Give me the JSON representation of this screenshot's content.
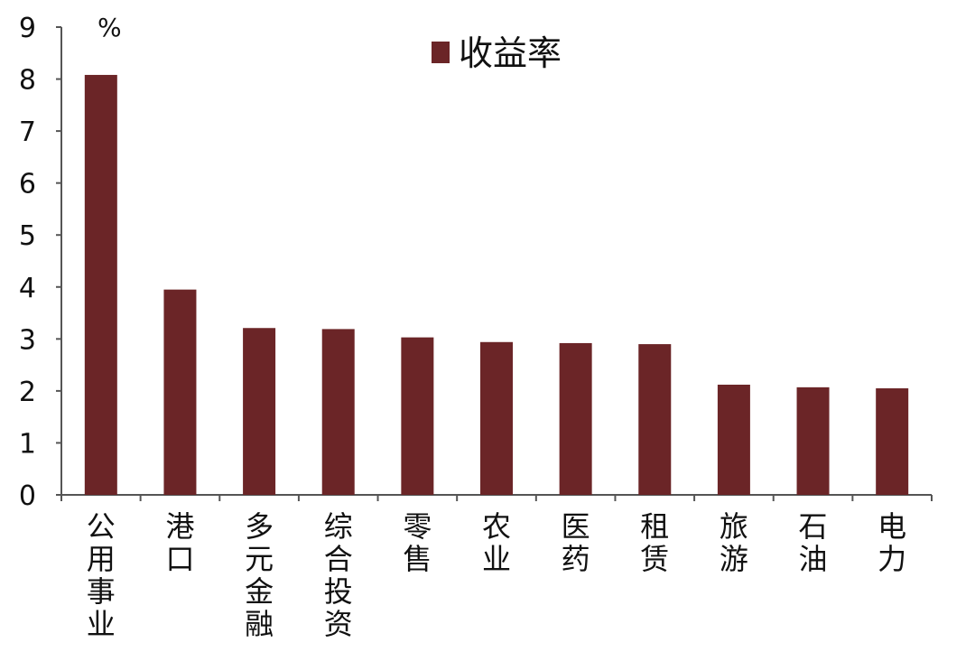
{
  "chart_data": {
    "type": "bar",
    "unit": "%",
    "categories": [
      "公用事业",
      "港口",
      "多元金融",
      "综合投资",
      "零售",
      "农业",
      "医药",
      "租赁",
      "旅游",
      "石油",
      "电力"
    ],
    "series": [
      {
        "name": "收益率",
        "color": "#6b2527",
        "values": [
          8.08,
          3.95,
          3.21,
          3.19,
          3.03,
          2.94,
          2.92,
          2.9,
          2.12,
          2.07,
          2.05
        ]
      }
    ],
    "ylim": [
      0,
      9
    ],
    "yticks": [
      0,
      1,
      2,
      3,
      4,
      5,
      6,
      7,
      8,
      9
    ],
    "legend_position": "top-center",
    "grid": false
  }
}
